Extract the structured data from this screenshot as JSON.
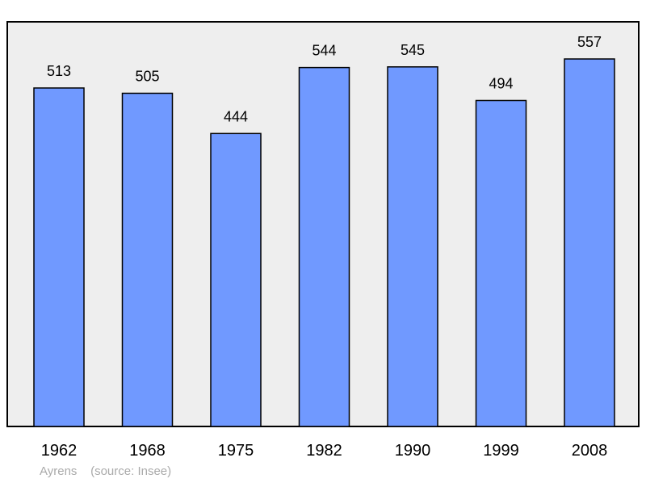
{
  "chart_data": {
    "type": "bar",
    "categories": [
      "1962",
      "1968",
      "1975",
      "1982",
      "1990",
      "1999",
      "2008"
    ],
    "values": [
      513,
      505,
      444,
      544,
      545,
      494,
      557
    ],
    "ylim": [
      0,
      600
    ],
    "grid": false,
    "legend": "none"
  },
  "caption": {
    "place": "Ayrens",
    "source": "(source: Insee)"
  },
  "colors": {
    "plot_background": "#eeeeee",
    "bar_fill": "#7099ff",
    "bar_stroke": "#000000"
  }
}
